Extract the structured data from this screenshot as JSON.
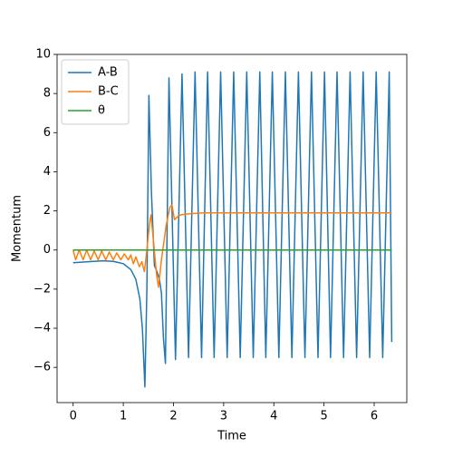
{
  "chart_data": {
    "type": "line",
    "xlabel": "Time",
    "ylabel": "Momentum",
    "xlim": [
      -0.32,
      6.65
    ],
    "ylim": [
      -7.8,
      10
    ],
    "xticks": [
      0,
      1,
      2,
      3,
      4,
      5,
      6
    ],
    "yticks": [
      {
        "value": -6,
        "label": "−6"
      },
      {
        "value": -4,
        "label": "−4"
      },
      {
        "value": -2,
        "label": "−2"
      },
      0,
      2,
      4,
      6,
      8,
      10
    ],
    "grid": false,
    "legend": "upper left",
    "series": [
      {
        "name": "A-B",
        "color": "#1f77b4",
        "x": [
          0,
          0.3,
          0.6,
          0.8,
          1.0,
          1.15,
          1.25,
          1.33,
          1.38,
          1.43,
          1.47,
          1.51,
          1.56,
          1.62,
          1.67,
          1.72,
          1.76,
          1.8,
          1.84,
          1.91,
          2.04,
          2.17,
          2.3,
          2.43,
          2.56,
          2.68,
          2.81,
          2.94,
          3.07,
          3.2,
          3.33,
          3.46,
          3.59,
          3.72,
          3.84,
          3.97,
          4.1,
          4.23,
          4.36,
          4.49,
          4.62,
          4.75,
          4.88,
          5.01,
          5.13,
          5.26,
          5.39,
          5.52,
          5.65,
          5.78,
          5.91,
          6.04,
          6.17,
          6.3,
          6.35
        ],
        "values": [
          -0.65,
          -0.6,
          -0.55,
          -0.58,
          -0.7,
          -1.0,
          -1.5,
          -2.5,
          -4,
          -7.0,
          -2,
          7.9,
          3,
          -0.8,
          -1.1,
          -1.5,
          -2.2,
          -4.5,
          -5.8,
          8.8,
          -5.6,
          9.0,
          -5.5,
          9.1,
          -5.5,
          9.1,
          -5.5,
          9.1,
          -5.5,
          9.1,
          -5.5,
          9.1,
          -5.5,
          9.1,
          -5.5,
          9.1,
          -5.5,
          9.1,
          -5.5,
          9.1,
          -5.5,
          9.1,
          -5.5,
          9.1,
          -5.5,
          9.1,
          -5.5,
          9.1,
          -5.5,
          9.1,
          -5.5,
          9.1,
          -5.5,
          9.1,
          -4.7
        ]
      },
      {
        "name": "B-C",
        "color": "#ff7f0e",
        "x": [
          0,
          0.05,
          0.12,
          0.2,
          0.27,
          0.35,
          0.42,
          0.5,
          0.57,
          0.65,
          0.72,
          0.8,
          0.87,
          0.95,
          1.02,
          1.1,
          1.15,
          1.2,
          1.25,
          1.32,
          1.37,
          1.42,
          1.47,
          1.52,
          1.55,
          1.6,
          1.66,
          1.7,
          1.76,
          1.85,
          1.93,
          1.97,
          2.02,
          2.08,
          2.15,
          2.3,
          2.6,
          3,
          6.35
        ],
        "values": [
          0,
          -0.5,
          0,
          -0.5,
          0,
          -0.5,
          -0.05,
          -0.5,
          -0.05,
          -0.5,
          -0.1,
          -0.5,
          -0.15,
          -0.5,
          -0.2,
          -0.5,
          -0.25,
          -0.7,
          -0.35,
          -0.85,
          -0.6,
          -1.1,
          0,
          1.3,
          1.8,
          0.5,
          -1.2,
          -1.9,
          -0.5,
          1.2,
          2.2,
          2.3,
          1.55,
          1.7,
          1.8,
          1.85,
          1.9,
          1.9,
          1.9
        ]
      },
      {
        "name": "θ",
        "color": "#2ca02c",
        "x": [
          0,
          6.35
        ],
        "values": [
          0,
          0
        ]
      }
    ]
  }
}
